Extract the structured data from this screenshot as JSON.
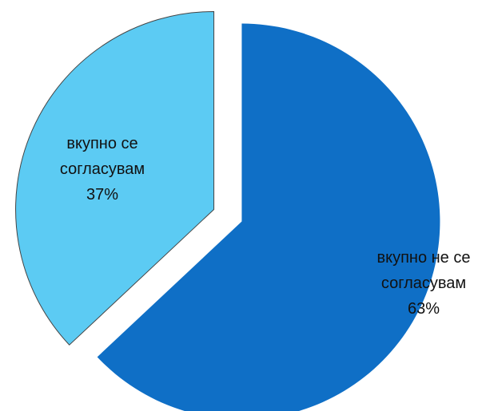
{
  "chart_data": {
    "type": "pie",
    "categories": [
      "вкупно не се согласувам",
      "вкупно се согласувам"
    ],
    "values": [
      63,
      37
    ],
    "value_labels": [
      "63%",
      "37%"
    ],
    "colors": [
      "#0f6fc6",
      "#5ccbf3"
    ]
  }
}
